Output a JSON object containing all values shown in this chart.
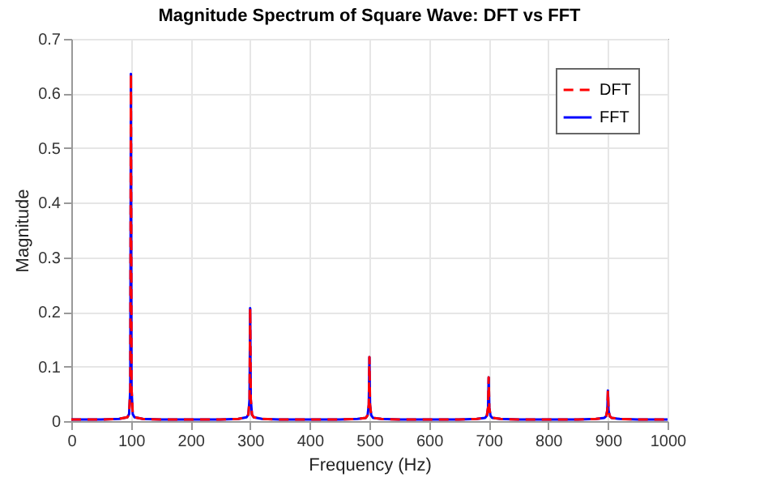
{
  "chart_data": {
    "type": "line",
    "title": "Magnitude Spectrum of Square Wave: DFT vs FFT",
    "xlabel": "Frequency (Hz)",
    "ylabel": "Magnitude",
    "x": [
      0,
      20,
      50,
      80,
      94,
      97,
      99,
      100,
      101,
      103,
      106,
      120,
      150,
      200,
      250,
      280,
      294,
      297,
      299,
      300,
      301,
      303,
      306,
      320,
      350,
      400,
      450,
      480,
      494,
      497,
      499,
      500,
      501,
      503,
      506,
      520,
      550,
      600,
      650,
      680,
      694,
      697,
      699,
      700,
      701,
      703,
      706,
      720,
      750,
      800,
      850,
      880,
      894,
      897,
      899,
      900,
      901,
      903,
      906,
      920,
      950,
      1000
    ],
    "series": [
      {
        "name": "DFT",
        "color": "#ff0000",
        "line_style": "dashed",
        "values": [
          0.003,
          0.003,
          0.003,
          0.004,
          0.007,
          0.013,
          0.06,
          0.636,
          0.06,
          0.013,
          0.007,
          0.004,
          0.003,
          0.003,
          0.003,
          0.004,
          0.007,
          0.012,
          0.04,
          0.207,
          0.04,
          0.012,
          0.007,
          0.004,
          0.003,
          0.003,
          0.003,
          0.004,
          0.006,
          0.011,
          0.03,
          0.117,
          0.03,
          0.011,
          0.006,
          0.004,
          0.003,
          0.003,
          0.003,
          0.004,
          0.006,
          0.01,
          0.025,
          0.08,
          0.025,
          0.01,
          0.006,
          0.004,
          0.003,
          0.003,
          0.003,
          0.004,
          0.006,
          0.009,
          0.02,
          0.056,
          0.02,
          0.009,
          0.006,
          0.004,
          0.003,
          0.003
        ]
      },
      {
        "name": "FFT",
        "color": "#0000ff",
        "line_style": "solid",
        "values": [
          0.003,
          0.003,
          0.003,
          0.004,
          0.007,
          0.013,
          0.06,
          0.636,
          0.06,
          0.013,
          0.007,
          0.004,
          0.003,
          0.003,
          0.003,
          0.004,
          0.007,
          0.012,
          0.04,
          0.207,
          0.04,
          0.012,
          0.007,
          0.004,
          0.003,
          0.003,
          0.003,
          0.004,
          0.006,
          0.011,
          0.03,
          0.117,
          0.03,
          0.011,
          0.006,
          0.004,
          0.003,
          0.003,
          0.003,
          0.004,
          0.006,
          0.01,
          0.025,
          0.08,
          0.025,
          0.01,
          0.006,
          0.004,
          0.003,
          0.003,
          0.003,
          0.004,
          0.006,
          0.009,
          0.02,
          0.056,
          0.02,
          0.009,
          0.006,
          0.004,
          0.003,
          0.003
        ]
      }
    ],
    "xlim": [
      0,
      1000
    ],
    "xticks": [
      0,
      100,
      200,
      300,
      400,
      500,
      600,
      700,
      800,
      900,
      {
        "value": 1000,
        "label": "1000"
      }
    ],
    "ylim": [
      0,
      0.7
    ],
    "yticks": [
      {
        "value": 0,
        "label": "0"
      },
      0.1,
      0.2,
      0.3,
      0.4,
      0.5,
      0.6,
      0.7
    ],
    "grid": true,
    "legend": "top right",
    "marker": "none"
  }
}
